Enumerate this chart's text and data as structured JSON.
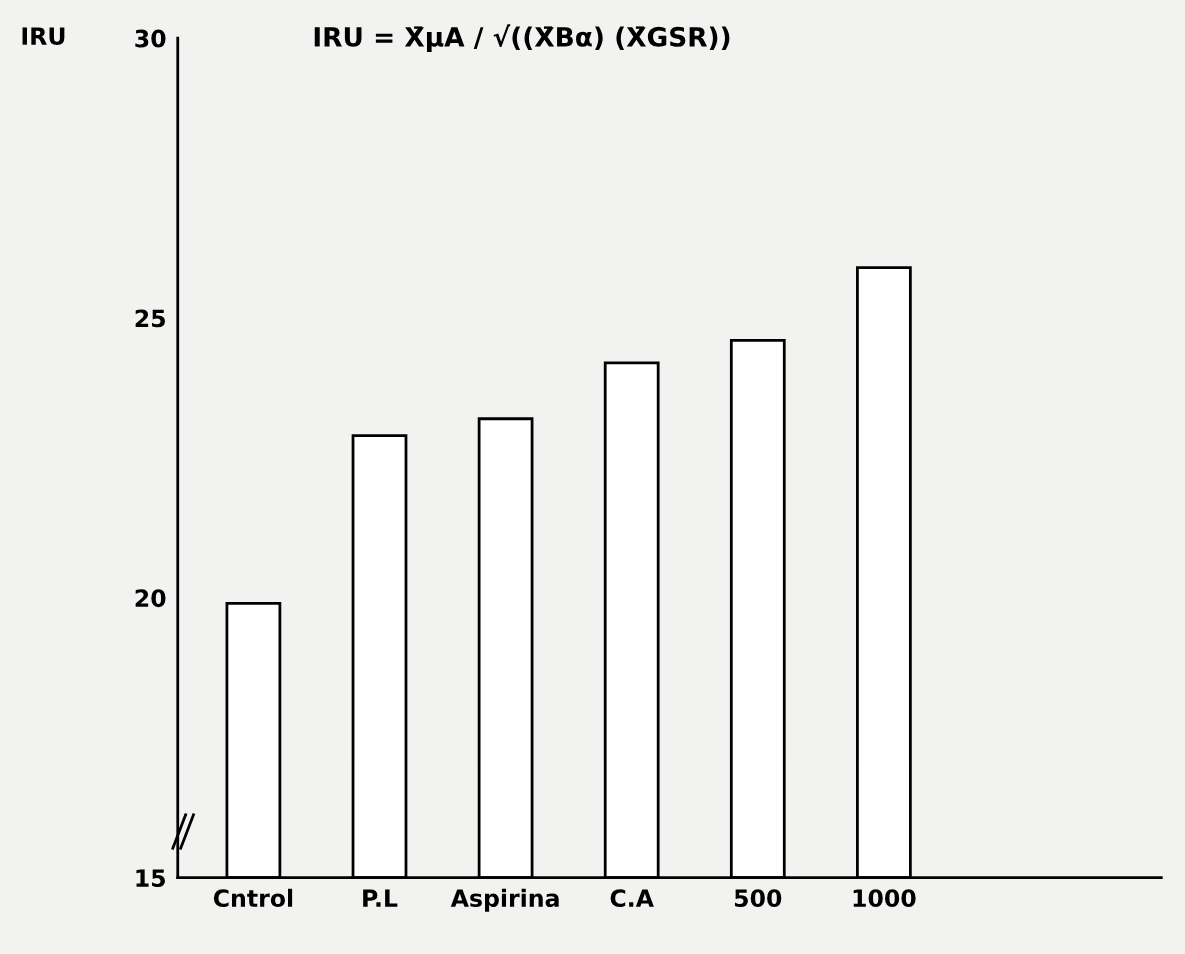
{
  "chart_data": {
    "type": "bar",
    "title": "IRU = X̄μA / √((X̄Bα) (X̄GSR))",
    "ylabel": "IRU",
    "categories": [
      "Cntrol",
      "P.L",
      "Aspirina",
      "C.A",
      "500",
      "1000"
    ],
    "values": [
      19.9,
      22.9,
      23.2,
      24.2,
      24.6,
      25.9
    ],
    "color": "#ffffff",
    "ylim": [
      15,
      30
    ],
    "yticks": [
      15,
      20,
      25,
      30
    ],
    "grid": false
  }
}
